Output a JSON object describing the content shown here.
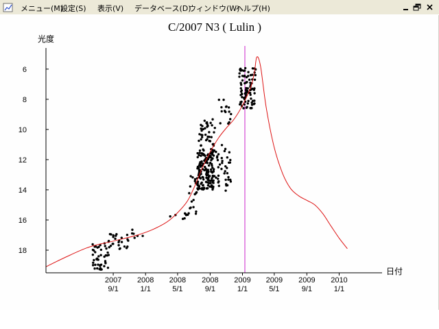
{
  "menubar": {
    "items": [
      "メニュー(M)",
      "設定(S)",
      "表示(V)",
      "データベース(D)",
      "ウィンドウ(W)",
      "ヘルプ(H)"
    ],
    "window_controls": [
      "minimize-icon",
      "restore-icon",
      "close-icon"
    ]
  },
  "colors": {
    "model_curve": "#dd1111",
    "perihelion_line": "#cc22cc",
    "points": "#000000",
    "menubar_bg": "#ece9d8"
  },
  "chart_data": {
    "type": "scatter",
    "title": "C/2007 N3 ( Lulin )",
    "ylabel": "光度",
    "xlabel": "日付",
    "y_inverted": true,
    "ylim": [
      19.5,
      4.6
    ],
    "xlim": [
      "2006-12-21",
      "2010-06-12"
    ],
    "y_ticks": [
      6,
      8,
      10,
      12,
      14,
      16,
      18
    ],
    "x_ticks": [
      {
        "date": "2007-09-01",
        "year": "2007",
        "md": "9/1"
      },
      {
        "date": "2008-01-01",
        "year": "2008",
        "md": "1/1"
      },
      {
        "date": "2008-05-01",
        "year": "2008",
        "md": "5/1"
      },
      {
        "date": "2008-09-01",
        "year": "2008",
        "md": "9/1"
      },
      {
        "date": "2009-01-01",
        "year": "2009",
        "md": "1/1"
      },
      {
        "date": "2009-05-01",
        "year": "2009",
        "md": "5/1"
      },
      {
        "date": "2009-09-01",
        "year": "2009",
        "md": "9/1"
      },
      {
        "date": "2010-01-01",
        "year": "2010",
        "md": "1/1"
      }
    ],
    "perihelion_date": "2009-01-10",
    "series": [
      {
        "kind": "model-curve",
        "points": [
          [
            "2006-12-21",
            19.1
          ],
          [
            "2007-03-01",
            18.5
          ],
          [
            "2007-06-01",
            17.8
          ],
          [
            "2007-09-01",
            17.4
          ],
          [
            "2007-12-01",
            17.0
          ],
          [
            "2008-02-01",
            16.6
          ],
          [
            "2008-04-01",
            16.0
          ],
          [
            "2008-06-01",
            14.9
          ],
          [
            "2008-07-01",
            13.9
          ],
          [
            "2008-08-01",
            12.6
          ],
          [
            "2008-09-01",
            11.5
          ],
          [
            "2008-10-01",
            10.6
          ],
          [
            "2008-11-01",
            9.9
          ],
          [
            "2008-12-01",
            9.3
          ],
          [
            "2009-01-01",
            8.4
          ],
          [
            "2009-02-01",
            7.2
          ],
          [
            "2009-02-15",
            6.2
          ],
          [
            "2009-02-24",
            5.2
          ],
          [
            "2009-03-10",
            5.8
          ],
          [
            "2009-04-01",
            8.6
          ],
          [
            "2009-05-01",
            11.2
          ],
          [
            "2009-06-01",
            12.9
          ],
          [
            "2009-07-01",
            13.9
          ],
          [
            "2009-08-01",
            14.4
          ],
          [
            "2009-09-01",
            14.7
          ],
          [
            "2009-10-01",
            15.0
          ],
          [
            "2009-11-01",
            15.6
          ],
          [
            "2009-12-01",
            16.4
          ],
          [
            "2010-01-01",
            17.2
          ],
          [
            "2010-02-01",
            17.9
          ]
        ]
      },
      {
        "kind": "observations",
        "clusters": [
          {
            "from": "2007-06-15",
            "to": "2007-08-15",
            "mag_from": 17.3,
            "mag_to": 19.3,
            "count": 45
          },
          {
            "from": "2007-08-15",
            "to": "2007-11-01",
            "mag_from": 16.8,
            "mag_to": 18.0,
            "count": 25
          },
          {
            "from": "2007-11-01",
            "to": "2008-01-01",
            "mag_from": 16.5,
            "mag_to": 17.2,
            "count": 6
          },
          {
            "from": "2008-04-01",
            "to": "2008-06-10",
            "mag_from": 14.8,
            "mag_to": 16.0,
            "count": 8
          },
          {
            "from": "2008-06-10",
            "to": "2008-07-15",
            "mag_from": 13.0,
            "mag_to": 15.6,
            "count": 20
          },
          {
            "from": "2008-07-15",
            "to": "2008-09-15",
            "mag_from": 11.5,
            "mag_to": 14.0,
            "count": 150
          },
          {
            "from": "2008-07-20",
            "to": "2008-09-20",
            "mag_from": 9.2,
            "mag_to": 11.5,
            "count": 45
          },
          {
            "from": "2008-09-15",
            "to": "2008-11-20",
            "mag_from": 11.0,
            "mag_to": 14.2,
            "count": 40
          },
          {
            "from": "2008-10-01",
            "to": "2008-11-20",
            "mag_from": 8.0,
            "mag_to": 10.2,
            "count": 15
          },
          {
            "from": "2008-12-20",
            "to": "2009-02-20",
            "mag_from": 5.9,
            "mag_to": 8.6,
            "count": 90
          }
        ]
      }
    ]
  }
}
